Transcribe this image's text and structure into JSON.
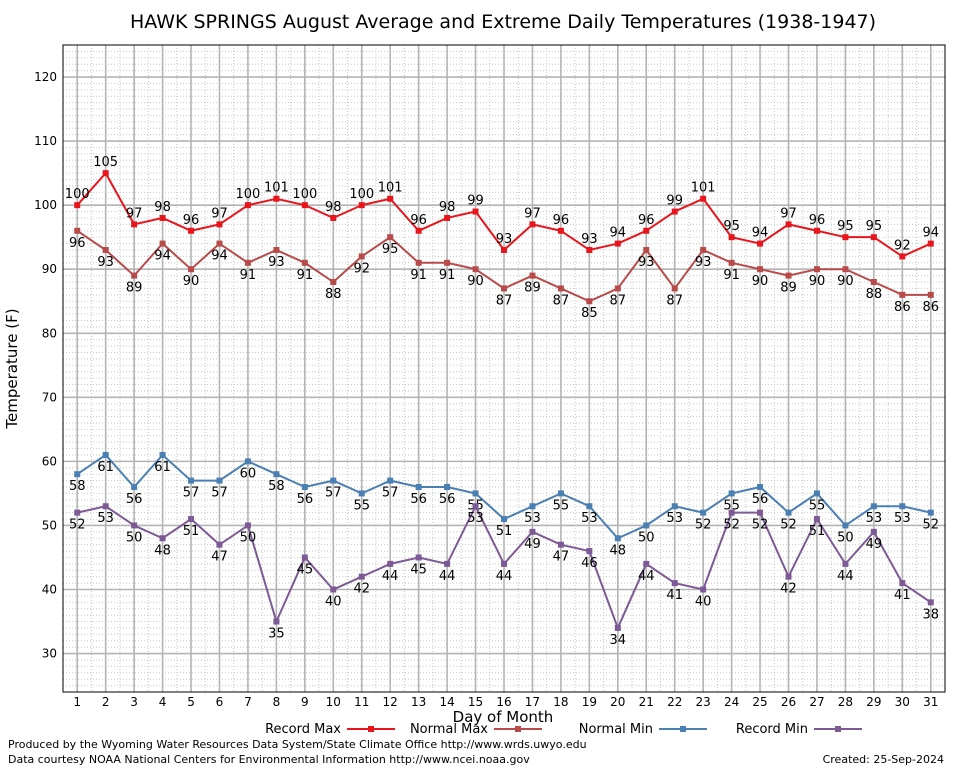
{
  "chart_data": {
    "type": "line",
    "title": "HAWK SPRINGS August Average and Extreme Daily Temperatures (1938-1947)",
    "xlabel": "Day of Month",
    "ylabel": "Temperature (F)",
    "x": [
      1,
      2,
      3,
      4,
      5,
      6,
      7,
      8,
      9,
      10,
      11,
      12,
      13,
      14,
      15,
      16,
      17,
      18,
      19,
      20,
      21,
      22,
      23,
      24,
      25,
      26,
      27,
      28,
      29,
      30,
      31
    ],
    "xlim": [
      0.5,
      31.5
    ],
    "ylim": [
      24,
      125
    ],
    "yticks": [
      30,
      40,
      50,
      60,
      70,
      80,
      90,
      100,
      110,
      120
    ],
    "grid": true,
    "legend_position": "bottom",
    "series": [
      {
        "name": "Record Max",
        "color": "#e8161c",
        "values": [
          100,
          105,
          97,
          98,
          96,
          97,
          100,
          101,
          100,
          98,
          100,
          101,
          96,
          98,
          99,
          93,
          97,
          96,
          93,
          94,
          96,
          99,
          101,
          95,
          94,
          97,
          96,
          95,
          95,
          92,
          94
        ]
      },
      {
        "name": "Normal Max",
        "color": "#b84a4a",
        "values": [
          96,
          93,
          89,
          94,
          90,
          94,
          91,
          93,
          91,
          88,
          92,
          95,
          91,
          91,
          90,
          87,
          89,
          87,
          85,
          87,
          93,
          87,
          93,
          91,
          90,
          89,
          90,
          90,
          88,
          86,
          86
        ]
      },
      {
        "name": "Normal Min",
        "color": "#4a7fb4",
        "values": [
          58,
          61,
          56,
          61,
          57,
          57,
          60,
          58,
          56,
          57,
          55,
          57,
          56,
          56,
          55,
          51,
          53,
          55,
          53,
          48,
          50,
          53,
          52,
          55,
          56,
          52,
          55,
          50,
          53,
          53,
          52
        ]
      },
      {
        "name": "Record Min",
        "color": "#7d5a96",
        "values": [
          52,
          53,
          50,
          48,
          51,
          47,
          50,
          35,
          45,
          40,
          42,
          44,
          45,
          44,
          53,
          44,
          49,
          47,
          46,
          34,
          44,
          41,
          40,
          52,
          52,
          42,
          51,
          44,
          49,
          41,
          38
        ]
      }
    ]
  },
  "footer": {
    "line1": "Produced by the Wyoming Water Resources Data System/State Climate Office http://www.wrds.uwyo.edu",
    "line2": "Data courtesy NOAA National Centers for Environmental Information http://www.ncei.noaa.gov",
    "created": "Created:  25-Sep-2024"
  }
}
